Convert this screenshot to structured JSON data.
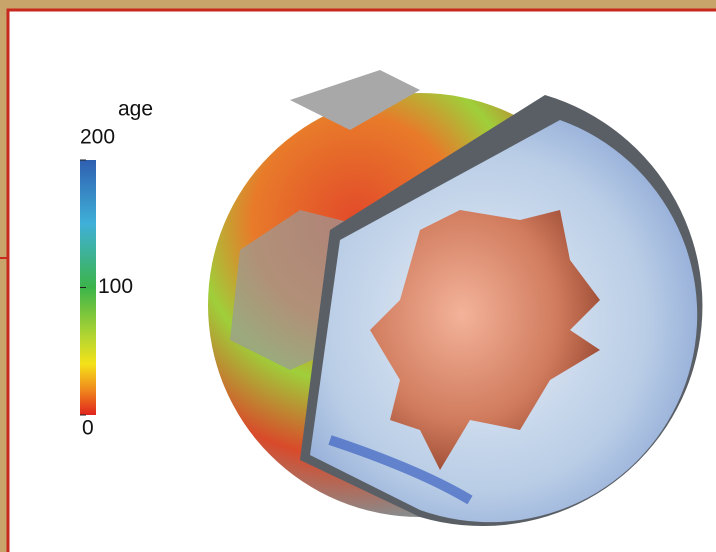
{
  "figure": {
    "colorbar": {
      "title": "age",
      "range": [
        0,
        200
      ],
      "ticks": [
        200,
        100,
        0
      ]
    }
  }
}
